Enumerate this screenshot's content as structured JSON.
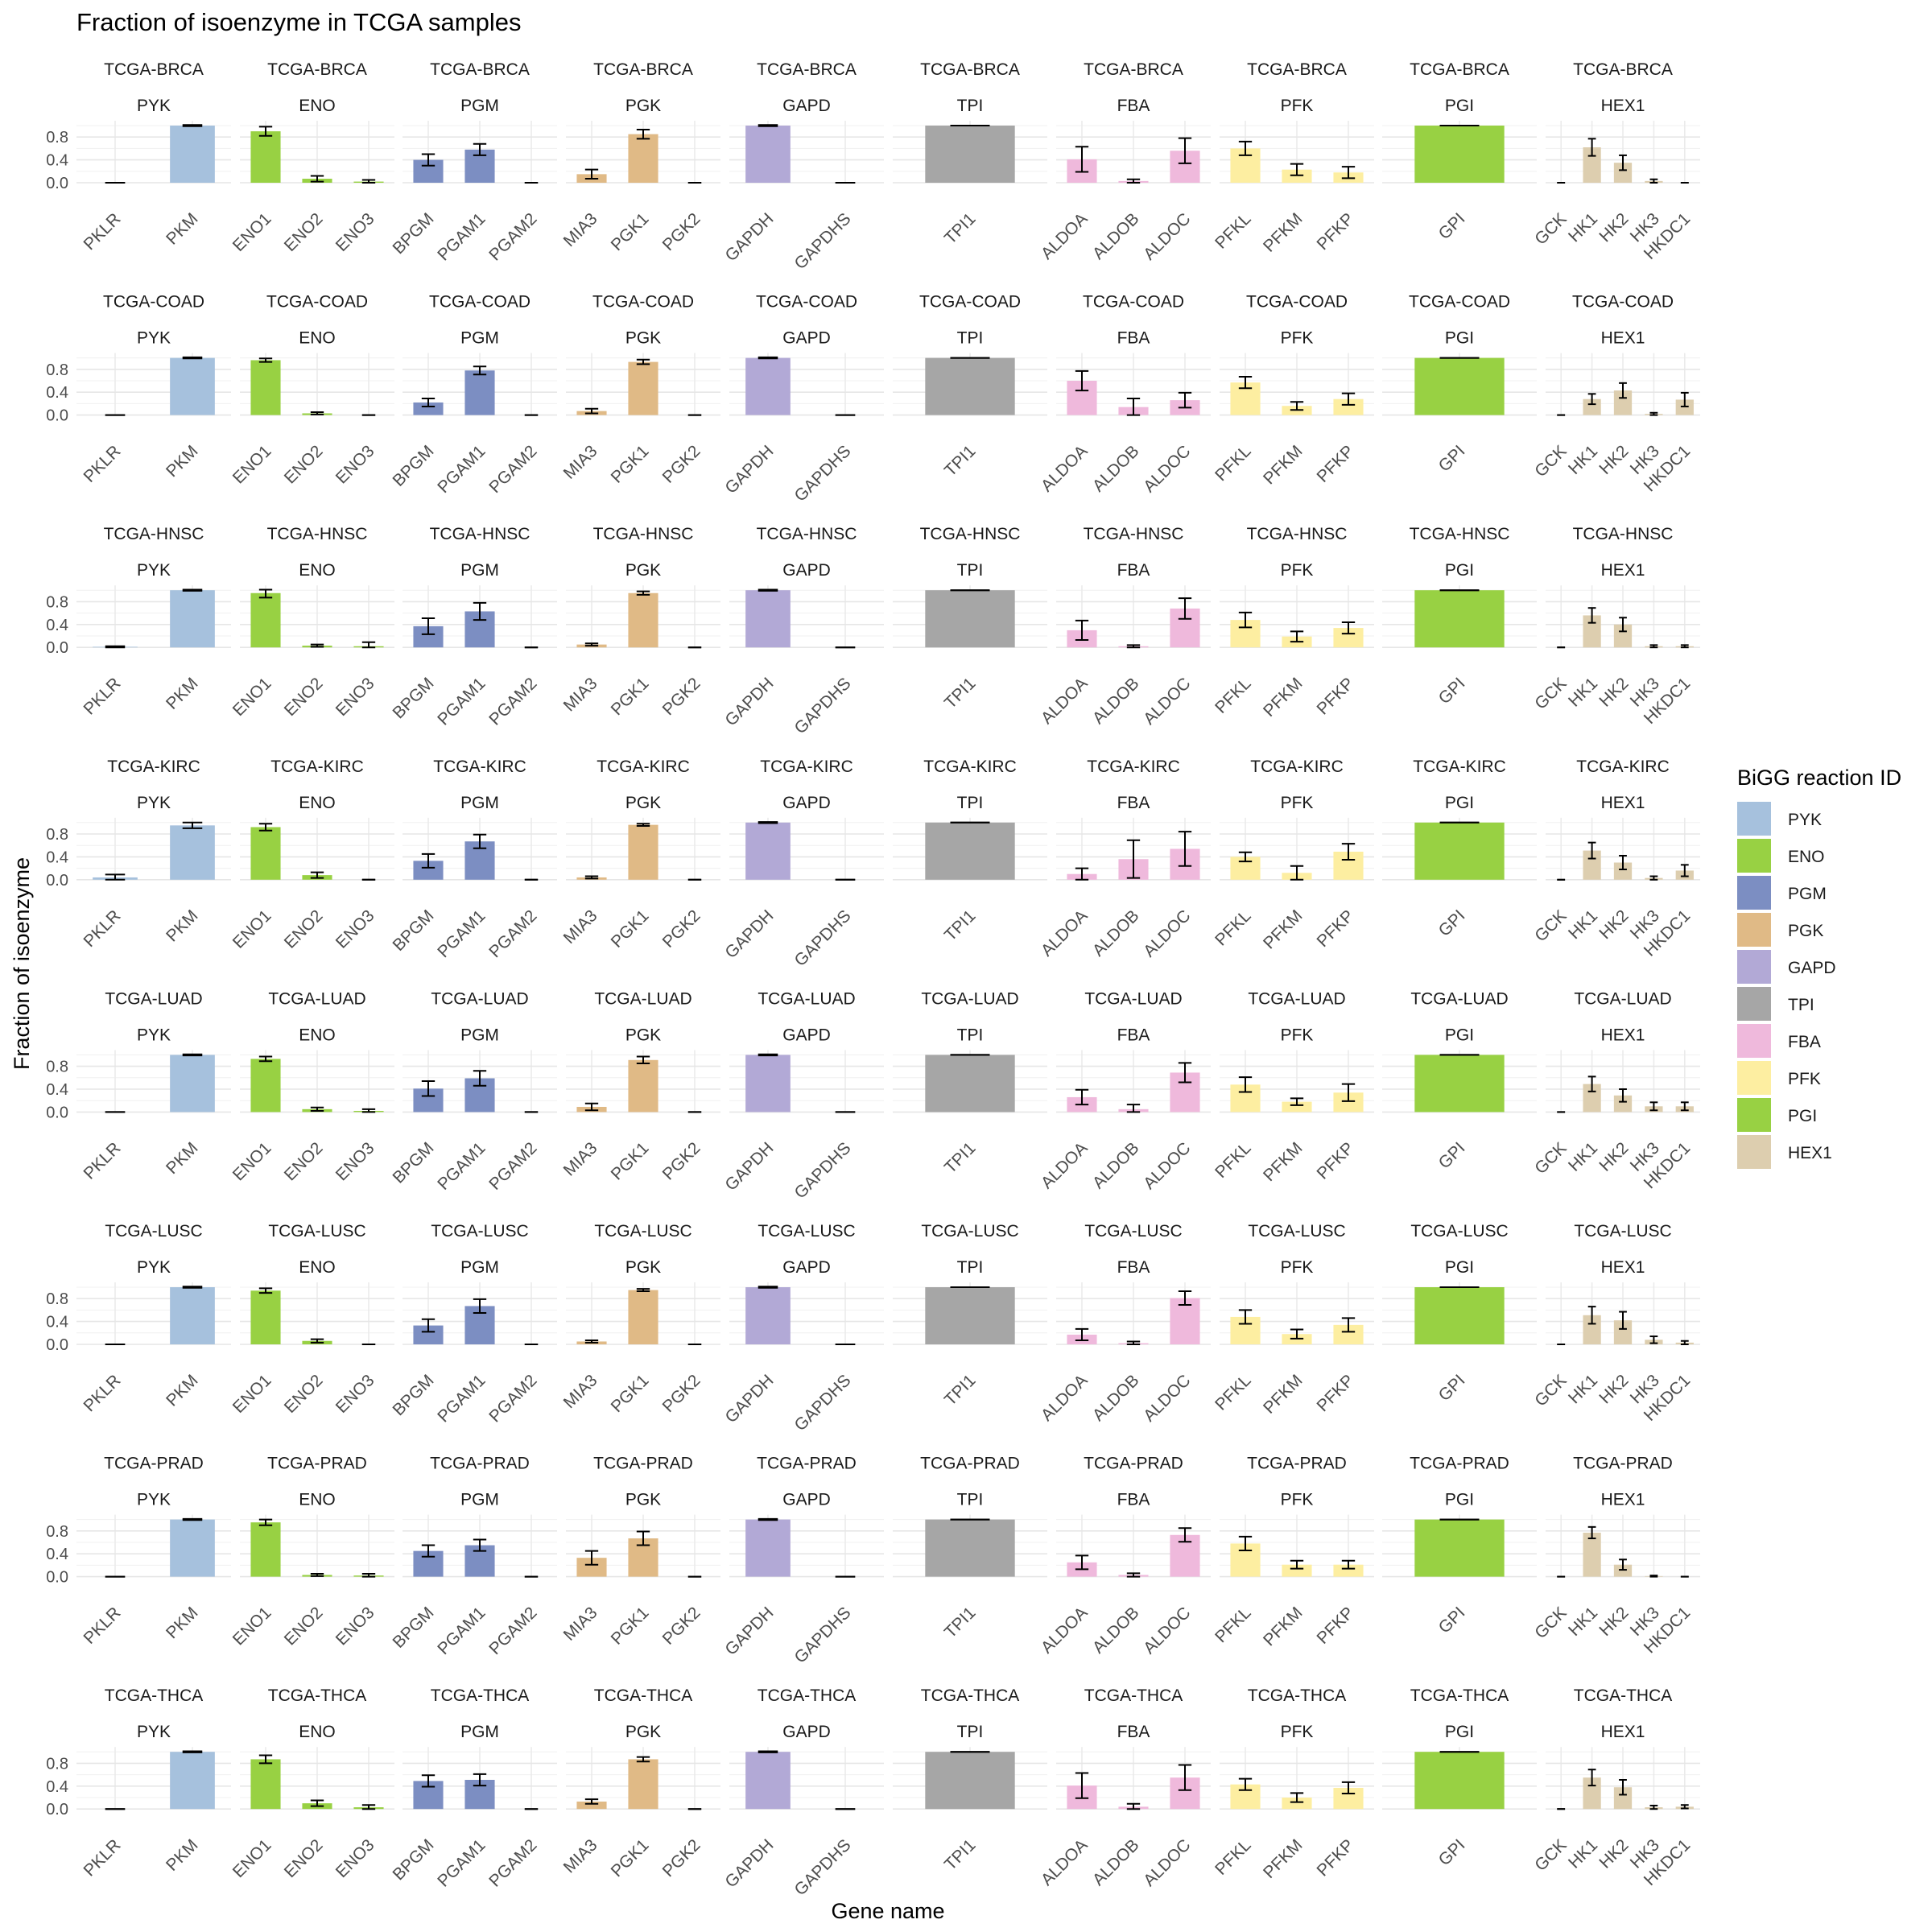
{
  "chart_data": {
    "type": "bar",
    "title": "Fraction of isoenzyme in TCGA samples",
    "xlabel": "Gene name",
    "ylabel": "Fraction of isoenzyme",
    "ylim": [
      0,
      1
    ],
    "yticks": [
      "0.0",
      "0.4",
      "0.8"
    ],
    "ytick_values": [
      0,
      0.4,
      0.8
    ],
    "grid": true,
    "legend": {
      "title": "BiGG reaction ID",
      "placement": "right",
      "items": [
        {
          "label": "PYK",
          "color": "#a6c1dd"
        },
        {
          "label": "ENO",
          "color": "#98d143"
        },
        {
          "label": "PGM",
          "color": "#7c8ec2"
        },
        {
          "label": "PGK",
          "color": "#e0ba86"
        },
        {
          "label": "GAPD",
          "color": "#b2a9d6"
        },
        {
          "label": "TPI",
          "color": "#a6a6a6"
        },
        {
          "label": "FBA",
          "color": "#efb9dc"
        },
        {
          "label": "PFK",
          "color": "#fdeea1"
        },
        {
          "label": "PGI",
          "color": "#98d143"
        },
        {
          "label": "HEX1",
          "color": "#ddceaf"
        }
      ]
    },
    "cohorts": [
      "TCGA-BRCA",
      "TCGA-COAD",
      "TCGA-HNSC",
      "TCGA-KIRC",
      "TCGA-LUAD",
      "TCGA-LUSC",
      "TCGA-PRAD",
      "TCGA-THCA"
    ],
    "reactions": [
      {
        "id": "PYK",
        "genes": [
          "PKLR",
          "PKM"
        ]
      },
      {
        "id": "ENO",
        "genes": [
          "ENO1",
          "ENO2",
          "ENO3"
        ]
      },
      {
        "id": "PGM",
        "genes": [
          "BPGM",
          "PGAM1",
          "PGAM2"
        ]
      },
      {
        "id": "PGK",
        "genes": [
          "MIA3",
          "PGK1",
          "PGK2"
        ]
      },
      {
        "id": "GAPD",
        "genes": [
          "GAPDH",
          "GAPDHS"
        ]
      },
      {
        "id": "TPI",
        "genes": [
          "TPI1"
        ]
      },
      {
        "id": "FBA",
        "genes": [
          "ALDOA",
          "ALDOB",
          "ALDOC"
        ]
      },
      {
        "id": "PFK",
        "genes": [
          "PFKL",
          "PFKM",
          "PFKP"
        ]
      },
      {
        "id": "PGI",
        "genes": [
          "GPI"
        ]
      },
      {
        "id": "HEX1",
        "genes": [
          "GCK",
          "HK1",
          "HK2",
          "HK3",
          "HKDC1"
        ]
      }
    ],
    "values": {
      "TCGA-BRCA": {
        "PYK": [
          [
            0.0,
            0.0
          ],
          [
            1.0,
            0.01
          ]
        ],
        "ENO": [
          [
            0.9,
            0.08
          ],
          [
            0.07,
            0.05
          ],
          [
            0.02,
            0.03
          ]
        ],
        "PGM": [
          [
            0.4,
            0.1
          ],
          [
            0.58,
            0.1
          ],
          [
            0.0,
            0.0
          ]
        ],
        "PGK": [
          [
            0.15,
            0.08
          ],
          [
            0.85,
            0.08
          ],
          [
            0.0,
            0.0
          ]
        ],
        "GAPD": [
          [
            1.0,
            0.01
          ],
          [
            0.0,
            0.0
          ]
        ],
        "TPI": [
          [
            1.0,
            0.0
          ]
        ],
        "FBA": [
          [
            0.41,
            0.22
          ],
          [
            0.03,
            0.03
          ],
          [
            0.56,
            0.22
          ]
        ],
        "PFK": [
          [
            0.6,
            0.12
          ],
          [
            0.23,
            0.1
          ],
          [
            0.18,
            0.1
          ]
        ],
        "PGI": [
          [
            1.0,
            0.0
          ]
        ],
        "HEX1": [
          [
            0.0,
            0.0
          ],
          [
            0.62,
            0.15
          ],
          [
            0.35,
            0.13
          ],
          [
            0.03,
            0.03
          ],
          [
            0.0,
            0.0
          ]
        ]
      },
      "TCGA-COAD": {
        "PYK": [
          [
            0.0,
            0.0
          ],
          [
            1.0,
            0.01
          ]
        ],
        "ENO": [
          [
            0.96,
            0.03
          ],
          [
            0.03,
            0.02
          ],
          [
            0.0,
            0.0
          ]
        ],
        "PGM": [
          [
            0.22,
            0.07
          ],
          [
            0.78,
            0.07
          ],
          [
            0.0,
            0.0
          ]
        ],
        "PGK": [
          [
            0.07,
            0.04
          ],
          [
            0.93,
            0.04
          ],
          [
            0.0,
            0.0
          ]
        ],
        "GAPD": [
          [
            1.0,
            0.01
          ],
          [
            0.0,
            0.0
          ]
        ],
        "TPI": [
          [
            1.0,
            0.0
          ]
        ],
        "FBA": [
          [
            0.6,
            0.17
          ],
          [
            0.14,
            0.15
          ],
          [
            0.26,
            0.13
          ]
        ],
        "PFK": [
          [
            0.57,
            0.1
          ],
          [
            0.16,
            0.07
          ],
          [
            0.28,
            0.1
          ]
        ],
        "PGI": [
          [
            1.0,
            0.0
          ]
        ],
        "HEX1": [
          [
            0.0,
            0.0
          ],
          [
            0.28,
            0.09
          ],
          [
            0.43,
            0.13
          ],
          [
            0.02,
            0.02
          ],
          [
            0.27,
            0.12
          ]
        ]
      },
      "TCGA-HNSC": {
        "PYK": [
          [
            0.01,
            0.01
          ],
          [
            1.0,
            0.01
          ]
        ],
        "ENO": [
          [
            0.95,
            0.08
          ],
          [
            0.03,
            0.02
          ],
          [
            0.02,
            0.07
          ]
        ],
        "PGM": [
          [
            0.37,
            0.14
          ],
          [
            0.63,
            0.15
          ],
          [
            0.0,
            0.0
          ]
        ],
        "PGK": [
          [
            0.05,
            0.02
          ],
          [
            0.95,
            0.03
          ],
          [
            0.0,
            0.0
          ]
        ],
        "GAPD": [
          [
            1.0,
            0.01
          ],
          [
            0.0,
            0.0
          ]
        ],
        "TPI": [
          [
            1.0,
            0.0
          ]
        ],
        "FBA": [
          [
            0.3,
            0.17
          ],
          [
            0.02,
            0.02
          ],
          [
            0.68,
            0.18
          ]
        ],
        "PFK": [
          [
            0.48,
            0.13
          ],
          [
            0.19,
            0.09
          ],
          [
            0.34,
            0.1
          ]
        ],
        "PGI": [
          [
            1.0,
            0.0
          ]
        ],
        "HEX1": [
          [
            0.0,
            0.0
          ],
          [
            0.56,
            0.13
          ],
          [
            0.4,
            0.12
          ],
          [
            0.02,
            0.02
          ],
          [
            0.02,
            0.02
          ]
        ]
      },
      "TCGA-KIRC": {
        "PYK": [
          [
            0.04,
            0.05
          ],
          [
            0.95,
            0.05
          ]
        ],
        "ENO": [
          [
            0.92,
            0.06
          ],
          [
            0.08,
            0.05
          ],
          [
            0.0,
            0.0
          ]
        ],
        "PGM": [
          [
            0.33,
            0.12
          ],
          [
            0.67,
            0.12
          ],
          [
            0.0,
            0.0
          ]
        ],
        "PGK": [
          [
            0.04,
            0.02
          ],
          [
            0.96,
            0.02
          ],
          [
            0.0,
            0.0
          ]
        ],
        "GAPD": [
          [
            1.0,
            0.01
          ],
          [
            0.0,
            0.0
          ]
        ],
        "TPI": [
          [
            1.0,
            0.0
          ]
        ],
        "FBA": [
          [
            0.1,
            0.1
          ],
          [
            0.36,
            0.33
          ],
          [
            0.54,
            0.3
          ]
        ],
        "PFK": [
          [
            0.4,
            0.08
          ],
          [
            0.12,
            0.12
          ],
          [
            0.49,
            0.14
          ]
        ],
        "PGI": [
          [
            1.0,
            0.0
          ]
        ],
        "HEX1": [
          [
            0.0,
            0.0
          ],
          [
            0.51,
            0.14
          ],
          [
            0.3,
            0.12
          ],
          [
            0.03,
            0.03
          ],
          [
            0.16,
            0.1
          ]
        ]
      },
      "TCGA-LUAD": {
        "PYK": [
          [
            0.0,
            0.0
          ],
          [
            1.0,
            0.01
          ]
        ],
        "ENO": [
          [
            0.93,
            0.04
          ],
          [
            0.05,
            0.03
          ],
          [
            0.02,
            0.03
          ]
        ],
        "PGM": [
          [
            0.41,
            0.13
          ],
          [
            0.59,
            0.13
          ],
          [
            0.0,
            0.0
          ]
        ],
        "PGK": [
          [
            0.09,
            0.06
          ],
          [
            0.91,
            0.06
          ],
          [
            0.0,
            0.0
          ]
        ],
        "GAPD": [
          [
            1.0,
            0.01
          ],
          [
            0.0,
            0.0
          ]
        ],
        "TPI": [
          [
            1.0,
            0.0
          ]
        ],
        "FBA": [
          [
            0.26,
            0.13
          ],
          [
            0.05,
            0.08
          ],
          [
            0.69,
            0.17
          ]
        ],
        "PFK": [
          [
            0.48,
            0.13
          ],
          [
            0.18,
            0.06
          ],
          [
            0.34,
            0.15
          ]
        ],
        "PGI": [
          [
            1.0,
            0.0
          ]
        ],
        "HEX1": [
          [
            0.0,
            0.0
          ],
          [
            0.49,
            0.13
          ],
          [
            0.29,
            0.11
          ],
          [
            0.1,
            0.07
          ],
          [
            0.1,
            0.07
          ]
        ]
      },
      "TCGA-LUSC": {
        "PYK": [
          [
            0.0,
            0.0
          ],
          [
            1.0,
            0.01
          ]
        ],
        "ENO": [
          [
            0.94,
            0.04
          ],
          [
            0.06,
            0.03
          ],
          [
            0.0,
            0.0
          ]
        ],
        "PGM": [
          [
            0.33,
            0.11
          ],
          [
            0.67,
            0.12
          ],
          [
            0.0,
            0.0
          ]
        ],
        "PGK": [
          [
            0.05,
            0.02
          ],
          [
            0.95,
            0.02
          ],
          [
            0.0,
            0.0
          ]
        ],
        "GAPD": [
          [
            1.0,
            0.01
          ],
          [
            0.0,
            0.0
          ]
        ],
        "TPI": [
          [
            1.0,
            0.0
          ]
        ],
        "FBA": [
          [
            0.17,
            0.1
          ],
          [
            0.02,
            0.03
          ],
          [
            0.81,
            0.12
          ]
        ],
        "PFK": [
          [
            0.48,
            0.12
          ],
          [
            0.18,
            0.08
          ],
          [
            0.34,
            0.12
          ]
        ],
        "PGI": [
          [
            1.0,
            0.0
          ]
        ],
        "HEX1": [
          [
            0.0,
            0.0
          ],
          [
            0.51,
            0.15
          ],
          [
            0.42,
            0.15
          ],
          [
            0.08,
            0.06
          ],
          [
            0.03,
            0.03
          ]
        ]
      },
      "TCGA-PRAD": {
        "PYK": [
          [
            0.0,
            0.0
          ],
          [
            1.0,
            0.01
          ]
        ],
        "ENO": [
          [
            0.95,
            0.05
          ],
          [
            0.03,
            0.02
          ],
          [
            0.02,
            0.03
          ]
        ],
        "PGM": [
          [
            0.45,
            0.1
          ],
          [
            0.55,
            0.1
          ],
          [
            0.0,
            0.0
          ]
        ],
        "PGK": [
          [
            0.33,
            0.12
          ],
          [
            0.67,
            0.12
          ],
          [
            0.0,
            0.0
          ]
        ],
        "GAPD": [
          [
            1.0,
            0.01
          ],
          [
            0.0,
            0.0
          ]
        ],
        "TPI": [
          [
            1.0,
            0.0
          ]
        ],
        "FBA": [
          [
            0.25,
            0.12
          ],
          [
            0.03,
            0.03
          ],
          [
            0.73,
            0.12
          ]
        ],
        "PFK": [
          [
            0.58,
            0.12
          ],
          [
            0.21,
            0.07
          ],
          [
            0.21,
            0.07
          ]
        ],
        "PGI": [
          [
            1.0,
            0.0
          ]
        ],
        "HEX1": [
          [
            0.0,
            0.0
          ],
          [
            0.77,
            0.1
          ],
          [
            0.21,
            0.09
          ],
          [
            0.01,
            0.01
          ],
          [
            0.0,
            0.0
          ]
        ]
      },
      "TCGA-THCA": {
        "PYK": [
          [
            0.0,
            0.0
          ],
          [
            1.0,
            0.01
          ]
        ],
        "ENO": [
          [
            0.87,
            0.07
          ],
          [
            0.1,
            0.05
          ],
          [
            0.03,
            0.04
          ]
        ],
        "PGM": [
          [
            0.49,
            0.1
          ],
          [
            0.51,
            0.1
          ],
          [
            0.0,
            0.0
          ]
        ],
        "PGK": [
          [
            0.13,
            0.04
          ],
          [
            0.87,
            0.04
          ],
          [
            0.0,
            0.0
          ]
        ],
        "GAPD": [
          [
            1.0,
            0.01
          ],
          [
            0.0,
            0.0
          ]
        ],
        "TPI": [
          [
            1.0,
            0.0
          ]
        ],
        "FBA": [
          [
            0.41,
            0.22
          ],
          [
            0.04,
            0.05
          ],
          [
            0.55,
            0.22
          ]
        ],
        "PFK": [
          [
            0.43,
            0.1
          ],
          [
            0.2,
            0.08
          ],
          [
            0.37,
            0.1
          ]
        ],
        "PGI": [
          [
            1.0,
            0.0
          ]
        ],
        "HEX1": [
          [
            0.0,
            0.0
          ],
          [
            0.55,
            0.14
          ],
          [
            0.38,
            0.13
          ],
          [
            0.03,
            0.03
          ],
          [
            0.04,
            0.03
          ]
        ]
      }
    }
  }
}
